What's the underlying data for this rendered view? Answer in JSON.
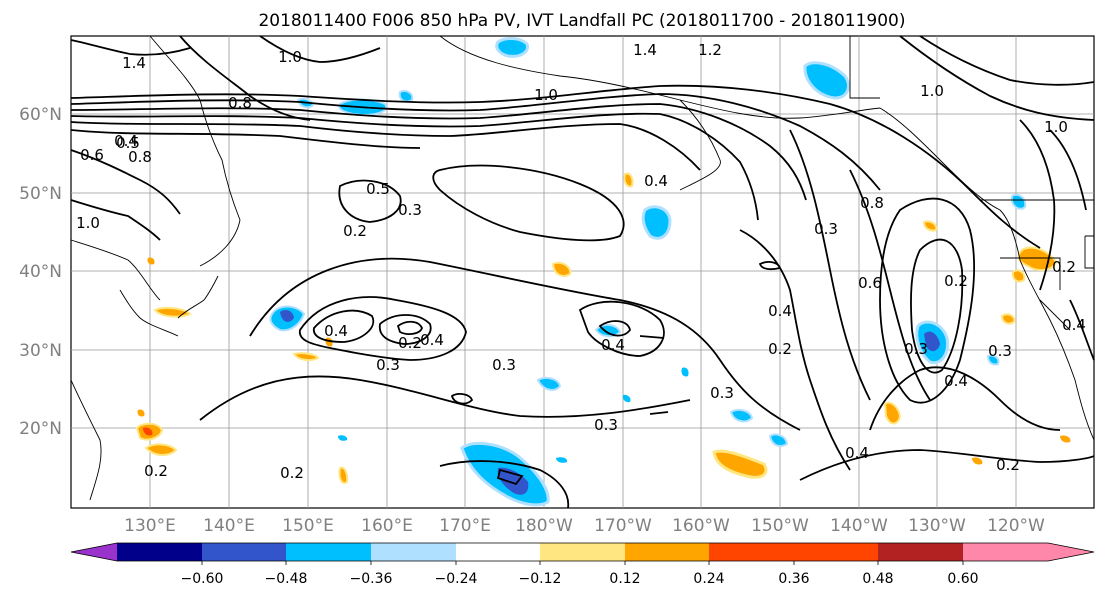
{
  "title": "2018011400 F006 850 hPa PV, IVT Landfall PC (2018011700 - 2018011900)",
  "lat_labels": [
    "60°N",
    "50°N",
    "40°N",
    "30°N",
    "20°N"
  ],
  "lon_labels": [
    "130°E",
    "140°E",
    "150°E",
    "160°E",
    "170°E",
    "180°W",
    "170°W",
    "160°W",
    "150°W",
    "140°W",
    "130°W",
    "120°W"
  ],
  "colorbar": {
    "colors": [
      "#9933cc",
      "#00008b",
      "#3355cc",
      "#00bfff",
      "#b0e0ff",
      "#ffffff",
      "#ffe680",
      "#ffa500",
      "#ff4500",
      "#b22222",
      "#ff88aa"
    ],
    "tick_labels": [
      "−0.60",
      "−0.48",
      "−0.36",
      "−0.24",
      "−0.12",
      "0.12",
      "0.24",
      "0.36",
      "0.48",
      "0.60"
    ]
  },
  "contour_labels": [
    "1.4",
    "1.0",
    "1.2",
    "1.4",
    "0.8",
    "1.0",
    "0.5",
    "0.8",
    "0.6",
    "1.0",
    "0.5",
    "0.3",
    "0.2",
    "0.4",
    "0.4",
    "0.3",
    "0.2",
    "0.4",
    "0.4",
    "0.3",
    "0.3",
    "0.3",
    "0.2",
    "0.2",
    "0.2",
    "0.2",
    "0.3",
    "0.4",
    "0.3",
    "0.8",
    "0.6",
    "0.2",
    "0.3",
    "0.4",
    "0.4",
    "1.0",
    "1.0",
    "0.2",
    "0.4",
    "0.4"
  ]
}
